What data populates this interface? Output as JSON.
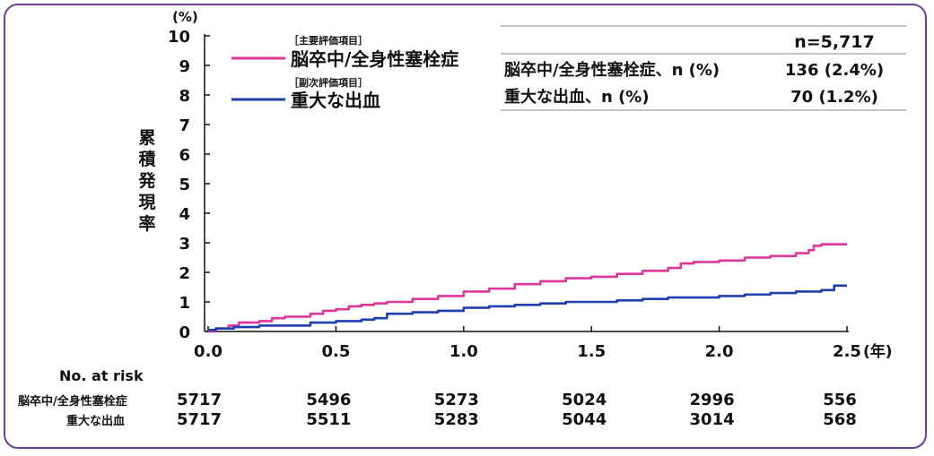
{
  "chart_data": {
    "type": "line",
    "title": "",
    "y_unit_label": "(%)",
    "x_unit_label": "(年)",
    "ylabel": "累積発現率",
    "xlim": [
      0,
      2.5
    ],
    "ylim": [
      0,
      10
    ],
    "x_ticks": [
      0.0,
      0.5,
      1.0,
      1.5,
      2.0,
      2.5
    ],
    "x_tick_labels": [
      "0.0",
      "0.5",
      "1.0",
      "1.5",
      "2.0",
      "2.5"
    ],
    "y_ticks": [
      0,
      1,
      2,
      3,
      4,
      5,
      6,
      7,
      8,
      9,
      10
    ],
    "y_tick_labels": [
      "0",
      "1",
      "2",
      "3",
      "4",
      "5",
      "6",
      "7",
      "8",
      "9",
      "10"
    ],
    "legend": {
      "placement": "top-left",
      "entries": [
        {
          "tag": "［主要評価項目］",
          "name": "脳卒中/全身性塞栓症",
          "color": "#e0359a"
        },
        {
          "tag": "［副次評価項目］",
          "name": "重大な出血",
          "color": "#1f3fb0"
        }
      ]
    },
    "series": [
      {
        "name": "脳卒中/全身性塞栓症",
        "color": "#e0359a",
        "x": [
          0,
          0.03,
          0.08,
          0.12,
          0.2,
          0.25,
          0.3,
          0.4,
          0.45,
          0.5,
          0.55,
          0.6,
          0.65,
          0.7,
          0.8,
          0.9,
          1.0,
          1.1,
          1.2,
          1.3,
          1.4,
          1.5,
          1.6,
          1.7,
          1.8,
          1.85,
          1.9,
          2.0,
          2.1,
          2.2,
          2.3,
          2.35,
          2.37,
          2.4,
          2.5
        ],
        "y": [
          0,
          0.1,
          0.2,
          0.3,
          0.35,
          0.45,
          0.5,
          0.6,
          0.7,
          0.75,
          0.85,
          0.9,
          0.95,
          1.0,
          1.1,
          1.2,
          1.35,
          1.45,
          1.6,
          1.7,
          1.8,
          1.85,
          1.95,
          2.05,
          2.15,
          2.3,
          2.35,
          2.4,
          2.5,
          2.55,
          2.65,
          2.75,
          2.9,
          2.95,
          2.95
        ]
      },
      {
        "name": "重大な出血",
        "color": "#1f3fb0",
        "x": [
          0,
          0.03,
          0.1,
          0.2,
          0.4,
          0.5,
          0.6,
          0.65,
          0.7,
          0.8,
          0.9,
          1.0,
          1.1,
          1.2,
          1.3,
          1.4,
          1.5,
          1.6,
          1.7,
          1.8,
          1.9,
          2.0,
          2.1,
          2.2,
          2.3,
          2.4,
          2.45,
          2.5
        ],
        "y": [
          0.05,
          0.1,
          0.15,
          0.2,
          0.3,
          0.35,
          0.4,
          0.45,
          0.6,
          0.65,
          0.7,
          0.8,
          0.85,
          0.9,
          0.95,
          1.0,
          1.0,
          1.05,
          1.1,
          1.15,
          1.15,
          1.2,
          1.25,
          1.3,
          1.35,
          1.4,
          1.55,
          1.55
        ]
      }
    ],
    "summary_table": {
      "header": "n=5,717",
      "rows": [
        {
          "label": "脳卒中/全身性塞栓症、n (%)",
          "value": "136 (2.4%)"
        },
        {
          "label": "重大な出血、n (%)",
          "value": "70 (1.2%)"
        }
      ]
    },
    "risk_table": {
      "title": "No. at risk",
      "rows": [
        {
          "label": "脳卒中/全身性塞栓症",
          "values": [
            "5717",
            "5496",
            "5273",
            "5024",
            "2996",
            "556"
          ]
        },
        {
          "label": "重大な出血",
          "values": [
            "5717",
            "5511",
            "5283",
            "5044",
            "3014",
            "568"
          ]
        }
      ]
    }
  }
}
